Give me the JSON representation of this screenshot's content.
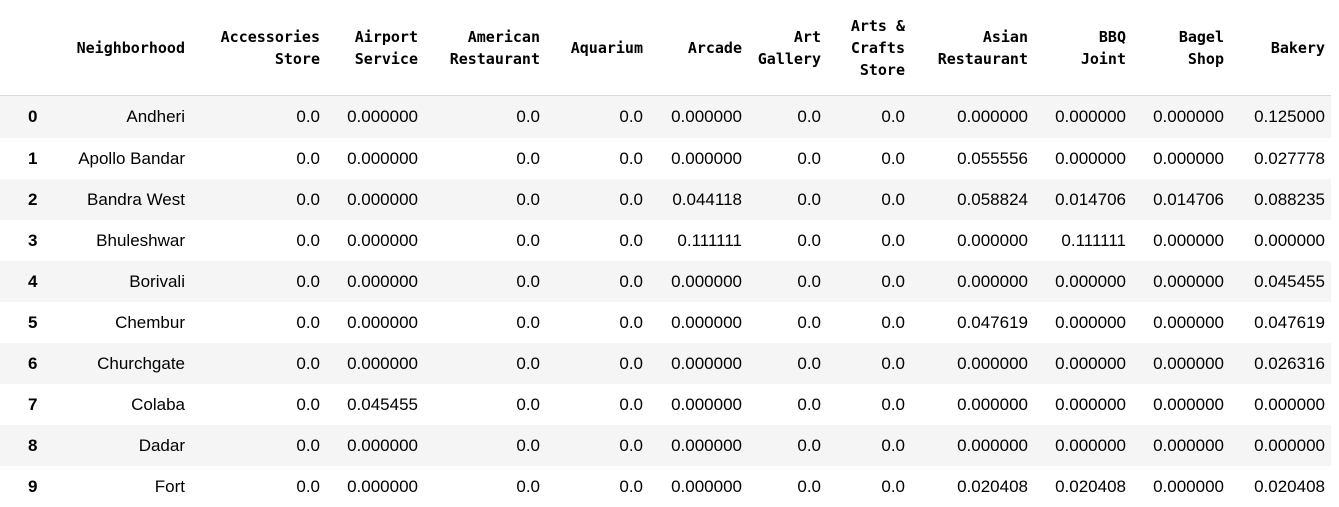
{
  "dataframe": {
    "columns": [
      "Neighborhood",
      "Accessories\nStore",
      "Airport\nService",
      "American\nRestaurant",
      "Aquarium",
      "Arcade",
      "Art\nGallery",
      "Arts &\nCrafts\nStore",
      "Asian\nRestaurant",
      "BBQ\nJoint",
      "Bagel\nShop",
      "Bakery"
    ],
    "rows": [
      {
        "index": "0",
        "cells": [
          "Andheri",
          "0.0",
          "0.000000",
          "0.0",
          "0.0",
          "0.000000",
          "0.0",
          "0.0",
          "0.000000",
          "0.000000",
          "0.000000",
          "0.125000"
        ]
      },
      {
        "index": "1",
        "cells": [
          "Apollo Bandar",
          "0.0",
          "0.000000",
          "0.0",
          "0.0",
          "0.000000",
          "0.0",
          "0.0",
          "0.055556",
          "0.000000",
          "0.000000",
          "0.027778"
        ]
      },
      {
        "index": "2",
        "cells": [
          "Bandra West",
          "0.0",
          "0.000000",
          "0.0",
          "0.0",
          "0.044118",
          "0.0",
          "0.0",
          "0.058824",
          "0.014706",
          "0.014706",
          "0.088235"
        ]
      },
      {
        "index": "3",
        "cells": [
          "Bhuleshwar",
          "0.0",
          "0.000000",
          "0.0",
          "0.0",
          "0.111111",
          "0.0",
          "0.0",
          "0.000000",
          "0.111111",
          "0.000000",
          "0.000000"
        ]
      },
      {
        "index": "4",
        "cells": [
          "Borivali",
          "0.0",
          "0.000000",
          "0.0",
          "0.0",
          "0.000000",
          "0.0",
          "0.0",
          "0.000000",
          "0.000000",
          "0.000000",
          "0.045455"
        ]
      },
      {
        "index": "5",
        "cells": [
          "Chembur",
          "0.0",
          "0.000000",
          "0.0",
          "0.0",
          "0.000000",
          "0.0",
          "0.0",
          "0.047619",
          "0.000000",
          "0.000000",
          "0.047619"
        ]
      },
      {
        "index": "6",
        "cells": [
          "Churchgate",
          "0.0",
          "0.000000",
          "0.0",
          "0.0",
          "0.000000",
          "0.0",
          "0.0",
          "0.000000",
          "0.000000",
          "0.000000",
          "0.026316"
        ]
      },
      {
        "index": "7",
        "cells": [
          "Colaba",
          "0.0",
          "0.045455",
          "0.0",
          "0.0",
          "0.000000",
          "0.0",
          "0.0",
          "0.000000",
          "0.000000",
          "0.000000",
          "0.000000"
        ]
      },
      {
        "index": "8",
        "cells": [
          "Dadar",
          "0.0",
          "0.000000",
          "0.0",
          "0.0",
          "0.000000",
          "0.0",
          "0.0",
          "0.000000",
          "0.000000",
          "0.000000",
          "0.000000"
        ]
      },
      {
        "index": "9",
        "cells": [
          "Fort",
          "0.0",
          "0.000000",
          "0.0",
          "0.0",
          "0.000000",
          "0.0",
          "0.0",
          "0.020408",
          "0.020408",
          "0.000000",
          "0.020408"
        ]
      }
    ]
  }
}
